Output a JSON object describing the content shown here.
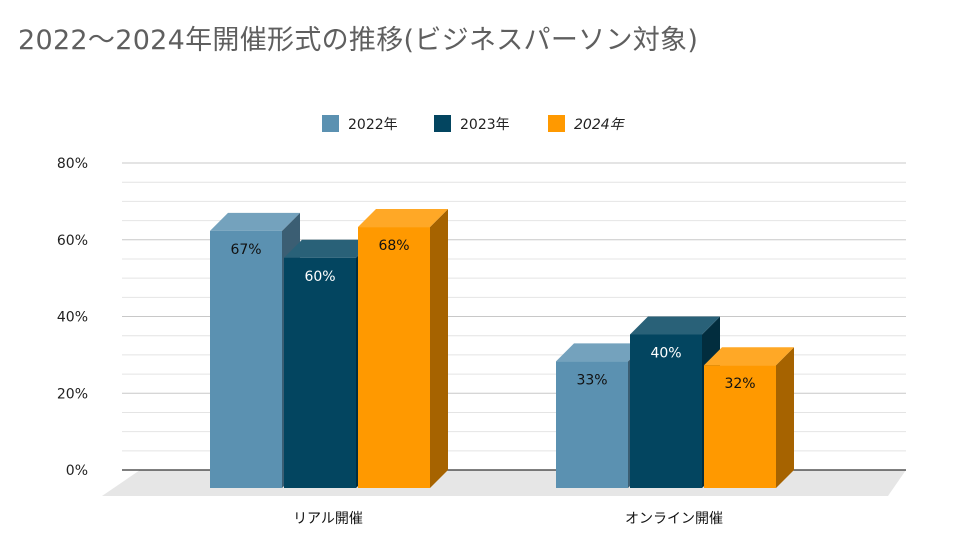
{
  "title": "2022〜2024年開催形式の推移(ビジネスパーソン対象)",
  "chart_data": {
    "type": "bar",
    "subtype": "3d-clustered",
    "categories": [
      "リアル開催",
      "オンライン開催"
    ],
    "series": [
      {
        "name": "2022年",
        "values": [
          67,
          33
        ],
        "labels": [
          "67%",
          "33%"
        ],
        "color": "#5b91b1",
        "italic": false
      },
      {
        "name": "2023年",
        "values": [
          60,
          40
        ],
        "labels": [
          "60%",
          "40%"
        ],
        "color": "#034560",
        "italic": false
      },
      {
        "name": "2024年",
        "values": [
          68,
          32
        ],
        "labels": [
          "68%",
          "32%"
        ],
        "color": "#ff9900",
        "italic": true
      }
    ],
    "yticks": [
      "0%",
      "20%",
      "40%",
      "60%",
      "80%"
    ],
    "ylim": [
      0,
      80
    ],
    "grid": true,
    "legend": "top-center"
  }
}
